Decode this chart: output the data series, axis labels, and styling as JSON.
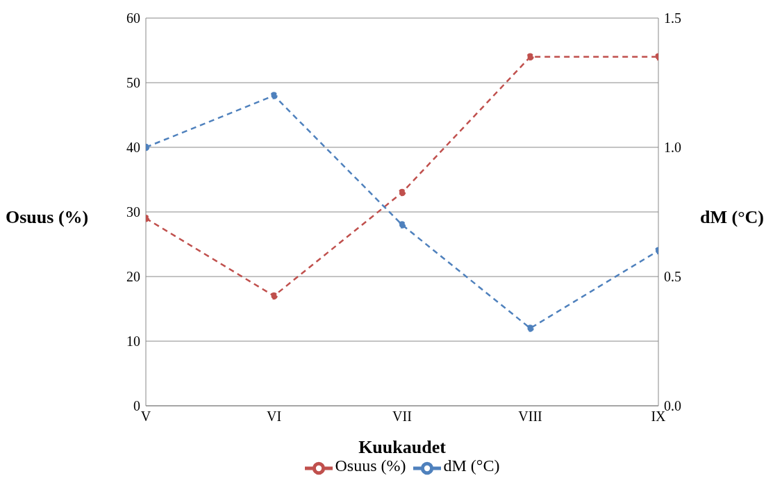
{
  "chart_data": {
    "type": "line",
    "xlabel": "Kuukaudet",
    "ylabel": "Osuus (%)",
    "y2label": "dM (°C)",
    "categories": [
      "V",
      "VI",
      "VII",
      "VIII",
      "IX"
    ],
    "series": [
      {
        "name": "Osuus (%)",
        "color": "#c0504d",
        "values": [
          29,
          17,
          33,
          54,
          54
        ]
      },
      {
        "name": "dM (°C)",
        "color": "#4f81bd",
        "axis": "y2",
        "values": [
          1.0,
          1.2,
          0.7,
          0.3,
          0.6
        ]
      }
    ],
    "ylim": [
      0,
      60
    ],
    "yticks": [
      0,
      10,
      20,
      30,
      40,
      50,
      60
    ],
    "y2lim": [
      0,
      1.5
    ],
    "y2ticks": [
      {
        "value": 0,
        "label": "0.0"
      },
      {
        "value": 0.5,
        "label": "0.5"
      },
      {
        "value": 1,
        "label": "1.0"
      },
      {
        "value": 1.5,
        "label": "1.5"
      }
    ],
    "grid": "y",
    "legend": "bottom",
    "marker": "circle",
    "line_style": "dashed"
  }
}
